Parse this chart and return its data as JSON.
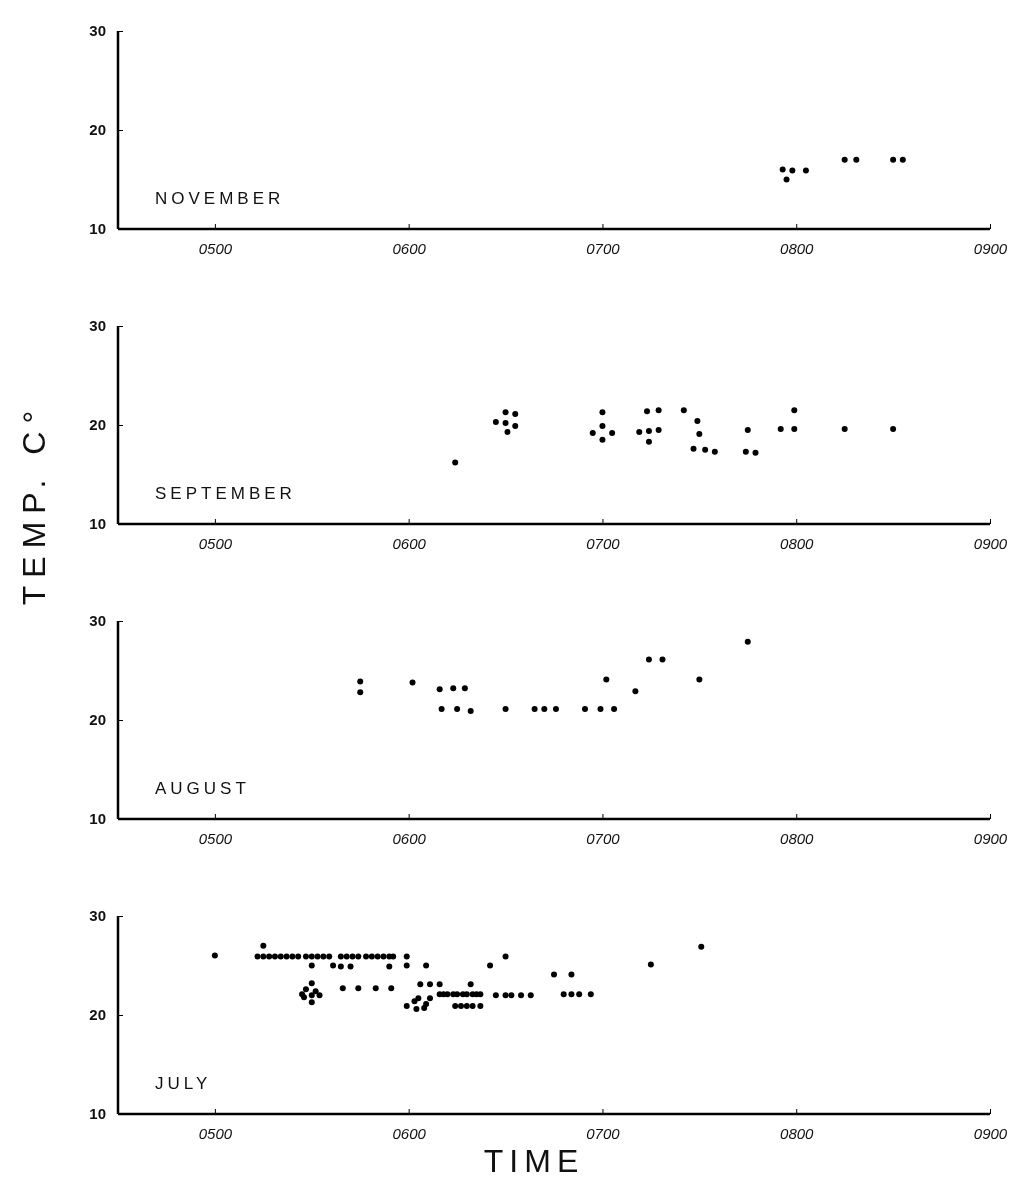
{
  "chart_data": [
    {
      "type": "scatter",
      "title": "NOVEMBER",
      "xlim": [
        450,
        900
      ],
      "ylim": [
        10,
        30
      ],
      "xticks": [
        {
          "value": 500,
          "label": "0500"
        },
        {
          "value": 600,
          "label": "0600"
        },
        {
          "value": 700,
          "label": "0700"
        },
        {
          "value": 800,
          "label": "0800"
        },
        {
          "value": 900,
          "label": "0900"
        }
      ],
      "yticks": [
        10,
        20,
        30
      ],
      "marker": "circle",
      "grid": false,
      "series": [
        {
          "color": "#000000",
          "x": [
            793,
            798,
            805,
            795,
            825,
            831,
            850,
            855
          ],
          "values": [
            16,
            15.9,
            15.9,
            15,
            17,
            17,
            17,
            17
          ]
        }
      ]
    },
    {
      "type": "scatter",
      "title": "SEPTEMBER",
      "ylabel": "TEMP. C°",
      "xlim": [
        450,
        900
      ],
      "ylim": [
        10,
        30
      ],
      "xticks": [
        {
          "value": 500,
          "label": "0500"
        },
        {
          "value": 600,
          "label": "0600"
        },
        {
          "value": 700,
          "label": "0700"
        },
        {
          "value": 800,
          "label": "0800"
        },
        {
          "value": 900,
          "label": "0900"
        }
      ],
      "yticks": [
        10,
        20,
        30
      ],
      "marker": "circle",
      "grid": false,
      "series": [
        {
          "color": "#000000",
          "x": [
            624,
            645,
            650,
            655,
            650,
            655,
            651,
            700,
            700,
            695,
            705,
            700,
            723,
            729,
            719,
            724,
            729,
            724,
            742,
            749,
            750,
            747,
            753,
            758,
            775,
            774,
            779,
            792,
            799,
            799,
            825,
            850
          ],
          "values": [
            16.2,
            20.3,
            21.3,
            21.1,
            20.2,
            19.9,
            19.3,
            21.3,
            19.9,
            19.2,
            19.2,
            18.5,
            21.4,
            21.5,
            19.3,
            19.4,
            19.5,
            18.3,
            21.5,
            20.4,
            19.1,
            17.6,
            17.5,
            17.3,
            19.5,
            17.3,
            17.2,
            19.6,
            19.6,
            21.5,
            19.6,
            19.6
          ]
        }
      ]
    },
    {
      "type": "scatter",
      "title": "AUGUST",
      "xlim": [
        450,
        900
      ],
      "ylim": [
        10,
        30
      ],
      "xticks": [
        {
          "value": 500,
          "label": "0500"
        },
        {
          "value": 600,
          "label": "0600"
        },
        {
          "value": 700,
          "label": "0700"
        },
        {
          "value": 800,
          "label": "0800"
        },
        {
          "value": 900,
          "label": "0900"
        }
      ],
      "yticks": [
        10,
        20,
        30
      ],
      "marker": "circle",
      "grid": false,
      "series": [
        {
          "color": "#000000",
          "x": [
            575,
            575,
            602,
            616,
            623,
            629,
            617,
            625,
            632,
            650,
            665,
            670,
            676,
            691,
            699,
            706,
            702,
            717,
            724,
            731,
            750,
            775
          ],
          "values": [
            23.9,
            22.8,
            23.8,
            23.1,
            23.2,
            23.2,
            21.1,
            21.1,
            20.9,
            21.1,
            21.1,
            21.1,
            21.1,
            21.1,
            21.1,
            21.1,
            24.1,
            22.9,
            26.1,
            26.1,
            24.1,
            27.9
          ]
        }
      ]
    },
    {
      "type": "scatter",
      "title": "JULY",
      "xlabel": "TIME",
      "xlim": [
        450,
        900
      ],
      "ylim": [
        10,
        30
      ],
      "xticks": [
        {
          "value": 500,
          "label": "0500"
        },
        {
          "value": 600,
          "label": "0600"
        },
        {
          "value": 700,
          "label": "0700"
        },
        {
          "value": 800,
          "label": "0800"
        },
        {
          "value": 900,
          "label": "0900"
        }
      ],
      "yticks": [
        10,
        20,
        30
      ],
      "marker": "circle",
      "grid": false,
      "series": [
        {
          "color": "#000000",
          "x": [
            500,
            525,
            522,
            525,
            528,
            531,
            534,
            537,
            540,
            543,
            547,
            550,
            553,
            556,
            559,
            565,
            568,
            571,
            574,
            578,
            581,
            584,
            587,
            590,
            592,
            599,
            550,
            561,
            565,
            570,
            590,
            599,
            609,
            550,
            547,
            552,
            545,
            550,
            554,
            546,
            550,
            566,
            574,
            583,
            591,
            599,
            603,
            605,
            608,
            609,
            611,
            604,
            606,
            611,
            616,
            616,
            618,
            620,
            623,
            625,
            628,
            630,
            633,
            635,
            637,
            632,
            624,
            627,
            630,
            633,
            637,
            645,
            650,
            653,
            658,
            663,
            675,
            684,
            680,
            684,
            688,
            694,
            642,
            650,
            725,
            751
          ],
          "values": [
            26.0,
            27.0,
            25.9,
            25.9,
            25.9,
            25.9,
            25.9,
            25.9,
            25.9,
            25.9,
            25.9,
            25.9,
            25.9,
            25.9,
            25.9,
            25.9,
            25.9,
            25.9,
            25.9,
            25.9,
            25.9,
            25.9,
            25.9,
            25.9,
            25.9,
            25.9,
            25.0,
            25.0,
            24.9,
            24.9,
            24.9,
            25.0,
            25.0,
            23.2,
            22.6,
            22.4,
            22.1,
            22.0,
            22.0,
            21.8,
            21.3,
            22.7,
            22.7,
            22.7,
            22.7,
            20.9,
            21.4,
            21.7,
            20.7,
            21.1,
            21.7,
            20.6,
            23.1,
            23.1,
            23.1,
            22.1,
            22.1,
            22.1,
            22.1,
            22.1,
            22.1,
            22.1,
            22.1,
            22.1,
            22.1,
            23.1,
            20.9,
            20.9,
            20.9,
            20.9,
            20.9,
            22.0,
            22.0,
            22.0,
            22.0,
            22.0,
            24.1,
            24.1,
            22.1,
            22.1,
            22.1,
            22.1,
            25.0,
            25.9,
            25.1,
            26.9
          ]
        }
      ]
    }
  ]
}
